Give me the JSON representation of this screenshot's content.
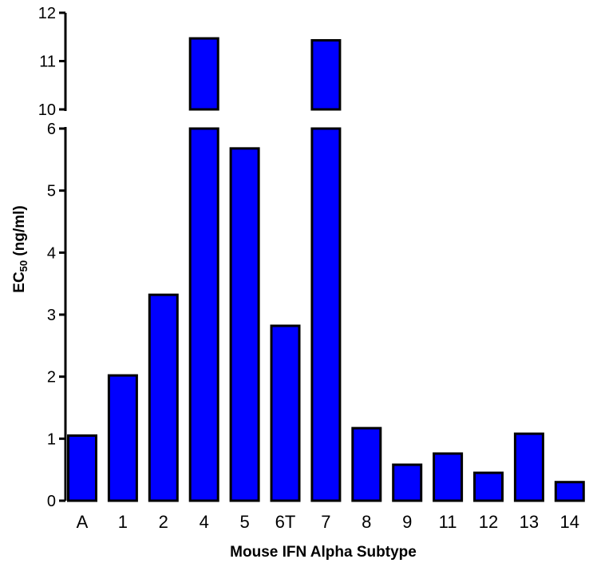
{
  "chart_data": {
    "type": "bar",
    "title": "",
    "xlabel": "Mouse IFN Alpha Subtype",
    "ylabel_main": "EC",
    "ylabel_sub": "50",
    "ylabel_unit": " (ng/ml)",
    "categories": [
      "A",
      "1",
      "2",
      "4",
      "5",
      "6T",
      "7",
      "8",
      "9",
      "11",
      "12",
      "13",
      "14"
    ],
    "values": [
      1.05,
      2.02,
      3.32,
      11.47,
      5.68,
      2.82,
      11.43,
      1.17,
      0.58,
      0.76,
      0.45,
      1.08,
      0.3
    ],
    "ylim": [
      0,
      12
    ],
    "axis_break": {
      "lower_max": 6,
      "upper_min": 10,
      "upper_max": 12
    },
    "yticks_lower": [
      "0",
      "1",
      "2",
      "3",
      "4",
      "5",
      "6"
    ],
    "yticks_upper": [
      "10",
      "11",
      "12"
    ],
    "bar_color": "#0000ff",
    "grid": false,
    "legend": "none"
  }
}
